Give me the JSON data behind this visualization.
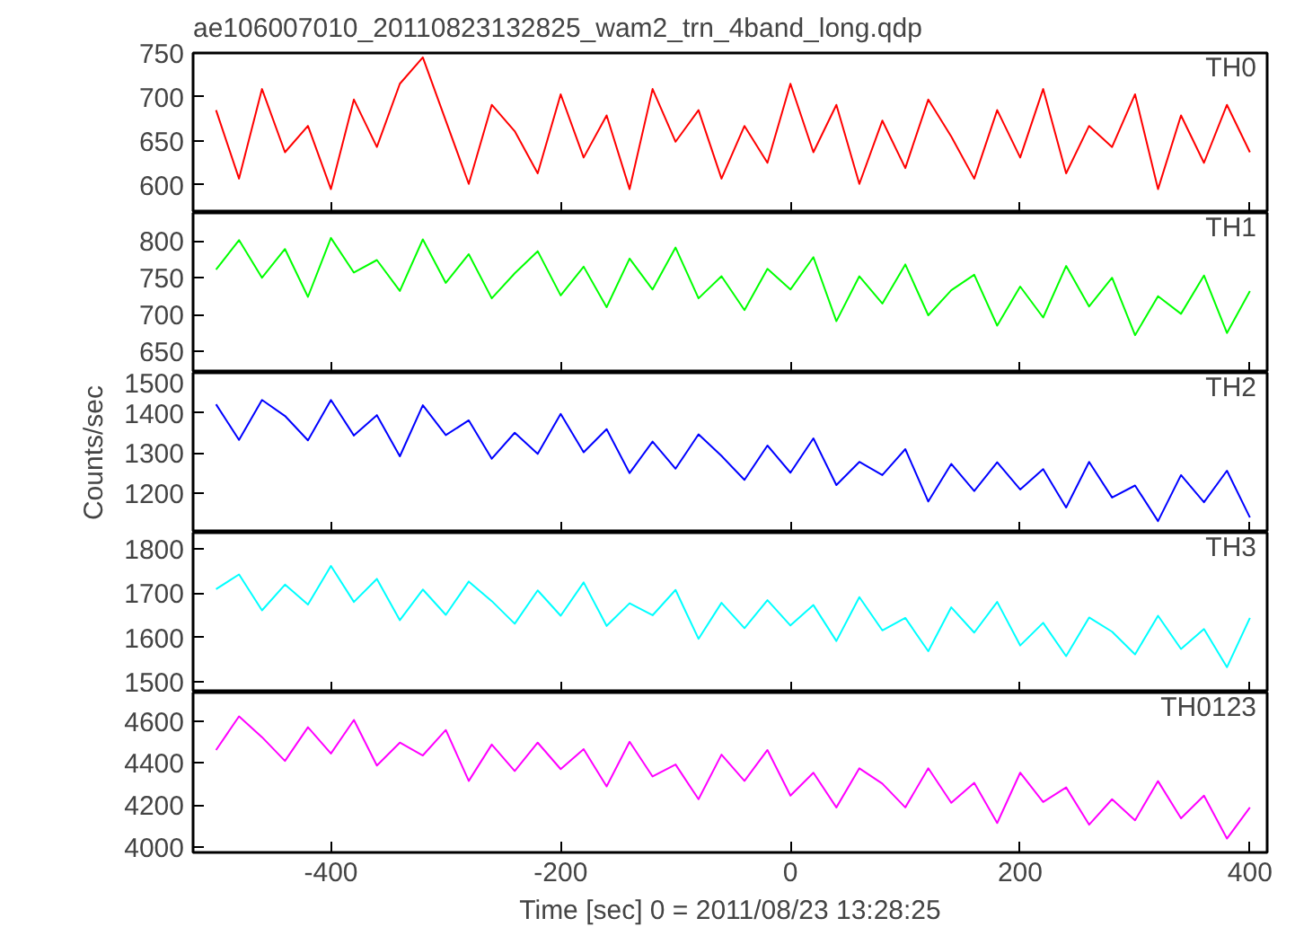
{
  "chart_data": [
    {
      "type": "line",
      "title": "ae106007010_20110823132825_wam2_trn_4band_long.qdp",
      "annotations": [
        "TH0"
      ],
      "xlim": [
        -520,
        415
      ],
      "xticks": [
        -400,
        -200,
        0,
        200,
        400
      ],
      "ylim": [
        568,
        750
      ],
      "yticks": [
        600,
        650,
        700,
        750
      ],
      "tick_labels": "y",
      "grid": false,
      "line_style": "solid",
      "x": [
        -500,
        -480,
        -460,
        -440,
        -420,
        -400,
        -380,
        -360,
        -340,
        -320,
        -300,
        -280,
        -260,
        -240,
        -220,
        -200,
        -180,
        -160,
        -140,
        -120,
        -100,
        -80,
        -60,
        -40,
        -20,
        0,
        20,
        40,
        60,
        80,
        100,
        120,
        140,
        160,
        180,
        200,
        220,
        240,
        260,
        280,
        300,
        320,
        340,
        360,
        380,
        400
      ],
      "series": [
        {
          "color": "#ff0000",
          "values": [
            685,
            607,
            709,
            637,
            667,
            595,
            697,
            643,
            715,
            745,
            673,
            601,
            691,
            661,
            613,
            703,
            631,
            679,
            595,
            709,
            649,
            685,
            607,
            667,
            625,
            715,
            637,
            691,
            601,
            673,
            619,
            697,
            655,
            607,
            685,
            631,
            709,
            613,
            667,
            643,
            703,
            595,
            679,
            625,
            691,
            637
          ]
        }
      ]
    },
    {
      "type": "line",
      "annotations": [
        "TH1"
      ],
      "xlim": [
        -520,
        415
      ],
      "xticks": [
        -400,
        -200,
        0,
        200,
        400
      ],
      "ylim": [
        621,
        838
      ],
      "yticks": [
        650,
        700,
        750,
        800
      ],
      "tick_labels": "y",
      "grid": false,
      "line_style": "solid",
      "x": [
        -500,
        -480,
        -460,
        -440,
        -420,
        -400,
        -380,
        -360,
        -340,
        -320,
        -300,
        -280,
        -260,
        -240,
        -220,
        -200,
        -180,
        -160,
        -140,
        -120,
        -100,
        -80,
        -60,
        -40,
        -20,
        0,
        20,
        40,
        60,
        80,
        100,
        120,
        140,
        160,
        180,
        200,
        220,
        240,
        260,
        280,
        300,
        320,
        340,
        360,
        380,
        400
      ],
      "series": [
        {
          "color": "#00ff00",
          "values": [
            761,
            801,
            750,
            789,
            724,
            804,
            757,
            774,
            732,
            802,
            743,
            782,
            722,
            756,
            786,
            726,
            765,
            710,
            776,
            734,
            791,
            722,
            752,
            706,
            762,
            734,
            778,
            691,
            752,
            715,
            768,
            699,
            733,
            754,
            685,
            738,
            696,
            766,
            711,
            750,
            672,
            725,
            701,
            753,
            675,
            732
          ]
        }
      ]
    },
    {
      "type": "line",
      "annotations": [
        "TH2"
      ],
      "ylabel": "Counts/sec",
      "xlim": [
        -520,
        415
      ],
      "xticks": [
        -400,
        -200,
        0,
        200,
        400
      ],
      "ylim": [
        1100,
        1500
      ],
      "yticks": [
        1200,
        1300,
        1400,
        1500
      ],
      "tick_labels": "y",
      "grid": false,
      "line_style": "solid",
      "x": [
        -500,
        -480,
        -460,
        -440,
        -420,
        -400,
        -380,
        -360,
        -340,
        -320,
        -300,
        -280,
        -260,
        -240,
        -220,
        -200,
        -180,
        -160,
        -140,
        -120,
        -100,
        -80,
        -60,
        -40,
        -20,
        0,
        20,
        40,
        60,
        80,
        100,
        120,
        140,
        160,
        180,
        200,
        220,
        240,
        260,
        280,
        300,
        320,
        340,
        360,
        380,
        400
      ],
      "series": [
        {
          "color": "#0000ff",
          "values": [
            1421,
            1332,
            1432,
            1392,
            1331,
            1432,
            1343,
            1394,
            1291,
            1419,
            1344,
            1381,
            1285,
            1350,
            1297,
            1397,
            1301,
            1359,
            1249,
            1328,
            1260,
            1346,
            1292,
            1232,
            1318,
            1250,
            1336,
            1219,
            1277,
            1244,
            1309,
            1178,
            1272,
            1204,
            1276,
            1208,
            1259,
            1163,
            1277,
            1188,
            1218,
            1129,
            1244,
            1176,
            1255,
            1138
          ]
        }
      ]
    },
    {
      "type": "line",
      "annotations": [
        "TH3"
      ],
      "xlim": [
        -520,
        415
      ],
      "xticks": [
        -400,
        -200,
        0,
        200,
        400
      ],
      "ylim": [
        1476,
        1836
      ],
      "yticks": [
        1500,
        1600,
        1700,
        1800
      ],
      "tick_labels": "y",
      "grid": false,
      "line_style": "solid",
      "x": [
        -500,
        -480,
        -460,
        -440,
        -420,
        -400,
        -380,
        -360,
        -340,
        -320,
        -300,
        -280,
        -260,
        -240,
        -220,
        -200,
        -180,
        -160,
        -140,
        -120,
        -100,
        -80,
        -60,
        -40,
        -20,
        0,
        20,
        40,
        60,
        80,
        100,
        120,
        140,
        160,
        180,
        200,
        220,
        240,
        260,
        280,
        300,
        320,
        340,
        360,
        380,
        400
      ],
      "series": [
        {
          "color": "#00ffff",
          "values": [
            1709,
            1742,
            1661,
            1719,
            1674,
            1761,
            1680,
            1732,
            1639,
            1708,
            1651,
            1726,
            1682,
            1631,
            1706,
            1649,
            1724,
            1626,
            1677,
            1650,
            1707,
            1597,
            1678,
            1621,
            1684,
            1627,
            1673,
            1592,
            1691,
            1616,
            1644,
            1569,
            1668,
            1611,
            1680,
            1582,
            1633,
            1558,
            1645,
            1613,
            1562,
            1649,
            1574,
            1619,
            1533,
            1644
          ]
        }
      ]
    },
    {
      "type": "line",
      "annotations": [
        "TH0123"
      ],
      "xlabel": "Time [sec] 0 = 2011/08/23 13:28:25",
      "xlim": [
        -520,
        415
      ],
      "xticks": [
        -400,
        -200,
        0,
        200,
        400
      ],
      "ylim": [
        3975,
        4735
      ],
      "yticks": [
        4000,
        4200,
        4400,
        4600
      ],
      "grid": false,
      "line_style": "solid",
      "x": [
        -500,
        -480,
        -460,
        -440,
        -420,
        -400,
        -380,
        -360,
        -340,
        -320,
        -300,
        -280,
        -260,
        -240,
        -220,
        -200,
        -180,
        -160,
        -140,
        -120,
        -100,
        -80,
        -60,
        -40,
        -20,
        0,
        20,
        40,
        60,
        80,
        100,
        120,
        140,
        160,
        180,
        200,
        220,
        240,
        260,
        280,
        300,
        320,
        340,
        360,
        380,
        400
      ],
      "series": [
        {
          "color": "#ff00ff",
          "values": [
            4462,
            4622,
            4523,
            4410,
            4570,
            4445,
            4605,
            4388,
            4497,
            4436,
            4557,
            4315,
            4488,
            4362,
            4497,
            4371,
            4466,
            4289,
            4501,
            4336,
            4393,
            4228,
            4440,
            4315,
            4462,
            4245,
            4354,
            4189,
            4375,
            4302,
            4189,
            4375,
            4211,
            4306,
            4115,
            4354,
            4215,
            4284,
            4107,
            4228,
            4128,
            4314,
            4137,
            4245,
            4041,
            4189
          ]
        }
      ]
    }
  ]
}
